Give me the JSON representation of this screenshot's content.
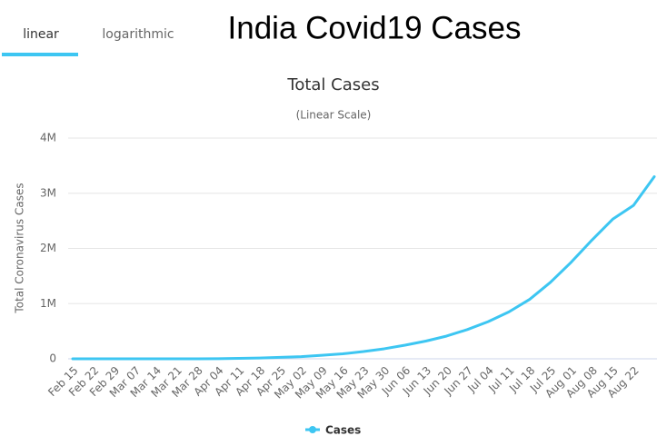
{
  "tabs": [
    "linear",
    "logarithmic"
  ],
  "header": "India Covid19 Cases",
  "chart_data": {
    "type": "line",
    "title": "Total Cases",
    "subtitle": "(Linear Scale)",
    "y_label": "Total Coronavirus Cases",
    "categories": [
      "Feb 15",
      "Feb 22",
      "Feb 29",
      "Mar 07",
      "Mar 14",
      "Mar 21",
      "Mar 28",
      "Apr 04",
      "Apr 11",
      "Apr 18",
      "Apr 25",
      "May 02",
      "May 09",
      "May 16",
      "May 23",
      "May 30",
      "Jun 06",
      "Jun 13",
      "Jun 20",
      "Jun 27",
      "Jul 04",
      "Jul 11",
      "Jul 18",
      "Jul 25",
      "Aug 01",
      "Aug 08",
      "Aug 15",
      "Aug 22",
      null
    ],
    "series": [
      {
        "name": "Cases",
        "color": "#3dc6f2",
        "values": [
          3,
          3,
          3,
          34,
          102,
          332,
          987,
          3082,
          7600,
          14800,
          26300,
          39900,
          62900,
          90600,
          131900,
          181800,
          246600,
          320900,
          411700,
          529600,
          673200,
          849600,
          1077600,
          1385600,
          1750700,
          2152000,
          2530000,
          2780000,
          3300000
        ]
      }
    ],
    "ylim": [
      0,
      4000000
    ],
    "yticks": [
      {
        "value": 0,
        "label": "0"
      },
      {
        "value": 1000000,
        "label": "1M"
      },
      {
        "value": 2000000,
        "label": "2M"
      },
      {
        "value": 3000000,
        "label": "3M"
      },
      {
        "value": 4000000,
        "label": "4M"
      }
    ],
    "grid": true,
    "legend": "bottom"
  }
}
